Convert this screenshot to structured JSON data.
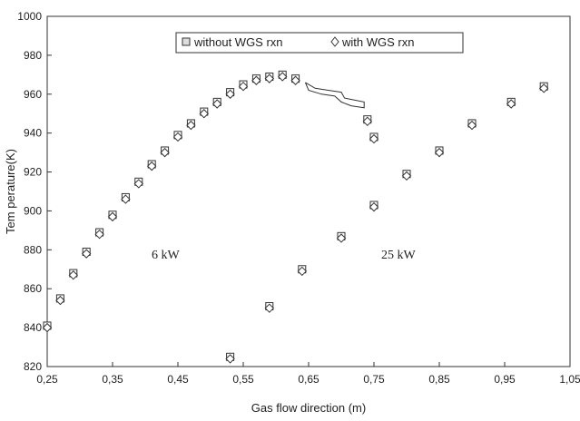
{
  "chart_data": {
    "type": "scatter",
    "title": "",
    "xlabel": "Gas flow direction (m)",
    "ylabel": "Tem perature(K)",
    "xlim": [
      0.25,
      1.05
    ],
    "ylim": [
      820,
      1000
    ],
    "x_ticks": [
      "0,25",
      "0,35",
      "0,45",
      "0,55",
      "0,65",
      "0,75",
      "0,85",
      "0,95",
      "1,05"
    ],
    "y_ticks": [
      "820",
      "840",
      "860",
      "880",
      "900",
      "920",
      "940",
      "960",
      "980",
      "1000"
    ],
    "legend_position": "top-center",
    "grid": false,
    "series": [
      {
        "name": "without WGS rxn",
        "marker": "square",
        "color": "#ffffff",
        "points": [
          [
            0.25,
            841
          ],
          [
            0.27,
            855
          ],
          [
            0.29,
            868
          ],
          [
            0.31,
            879
          ],
          [
            0.33,
            889
          ],
          [
            0.35,
            898
          ],
          [
            0.37,
            907
          ],
          [
            0.39,
            915
          ],
          [
            0.41,
            924
          ],
          [
            0.43,
            931
          ],
          [
            0.45,
            939
          ],
          [
            0.47,
            945
          ],
          [
            0.49,
            951
          ],
          [
            0.51,
            956
          ],
          [
            0.53,
            961
          ],
          [
            0.55,
            965
          ],
          [
            0.57,
            968
          ],
          [
            0.59,
            969
          ],
          [
            0.61,
            970
          ],
          [
            0.63,
            968
          ],
          [
            0.74,
            947
          ],
          [
            0.75,
            938
          ],
          [
            0.53,
            825
          ],
          [
            0.59,
            851
          ],
          [
            0.64,
            870
          ],
          [
            0.7,
            887
          ],
          [
            0.75,
            903
          ],
          [
            0.8,
            919
          ],
          [
            0.85,
            931
          ],
          [
            0.9,
            945
          ],
          [
            0.96,
            956
          ],
          [
            1.01,
            964
          ]
        ]
      },
      {
        "name": "with WGS rxn",
        "marker": "diamond",
        "color": "#ffffff",
        "points": [
          [
            0.25,
            840
          ],
          [
            0.27,
            854
          ],
          [
            0.29,
            867
          ],
          [
            0.31,
            878
          ],
          [
            0.33,
            888
          ],
          [
            0.35,
            897
          ],
          [
            0.37,
            906
          ],
          [
            0.39,
            914
          ],
          [
            0.41,
            923
          ],
          [
            0.43,
            930
          ],
          [
            0.45,
            938
          ],
          [
            0.47,
            944
          ],
          [
            0.49,
            950
          ],
          [
            0.51,
            955
          ],
          [
            0.53,
            960
          ],
          [
            0.55,
            964
          ],
          [
            0.57,
            967
          ],
          [
            0.59,
            968
          ],
          [
            0.61,
            969
          ],
          [
            0.63,
            967
          ],
          [
            0.74,
            946
          ],
          [
            0.75,
            937
          ],
          [
            0.53,
            824
          ],
          [
            0.59,
            850
          ],
          [
            0.64,
            869
          ],
          [
            0.7,
            886
          ],
          [
            0.75,
            902
          ],
          [
            0.8,
            918
          ],
          [
            0.85,
            930
          ],
          [
            0.9,
            944
          ],
          [
            0.96,
            955
          ],
          [
            1.01,
            963
          ]
        ]
      }
    ],
    "annotations": [
      "6 kW",
      "25 kW"
    ],
    "cluster_curve": [
      [
        0.645,
        966
      ],
      [
        0.66,
        963
      ],
      [
        0.68,
        962
      ],
      [
        0.7,
        961
      ],
      [
        0.705,
        958
      ],
      [
        0.72,
        957
      ],
      [
        0.735,
        956
      ],
      [
        0.735,
        953
      ],
      [
        0.715,
        954
      ],
      [
        0.7,
        956
      ],
      [
        0.69,
        959
      ],
      [
        0.67,
        960
      ],
      [
        0.65,
        962
      ],
      [
        0.645,
        966
      ]
    ]
  }
}
